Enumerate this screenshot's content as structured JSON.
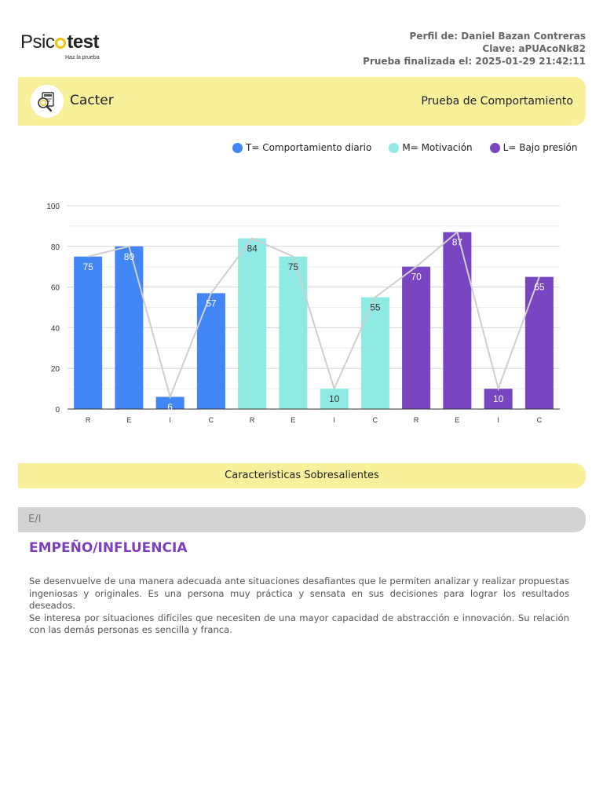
{
  "brand": {
    "name_part1": "Psic",
    "name_part2": "test",
    "tagline": "Haz la prueba"
  },
  "meta": {
    "profile": "Perfil de: Daniel Bazan Contreras",
    "key": "Clave: aPUAcoNk82",
    "finished": "Prueba finalizada el: 2025-01-29 21:42:11"
  },
  "header": {
    "test_name": "Cacter",
    "test_type": "Prueba de Comportamiento"
  },
  "legend": [
    {
      "label": "T= Comportamiento diario",
      "color": "#4285f4"
    },
    {
      "label": "M= Motivación",
      "color": "#8eeae2"
    },
    {
      "label": "L= Bajo presión",
      "color": "#7846c0"
    }
  ],
  "chart_data": {
    "type": "bar",
    "categories": [
      "R",
      "E",
      "I",
      "C",
      "R",
      "E",
      "I",
      "C",
      "R",
      "E",
      "I",
      "C"
    ],
    "values": [
      75,
      80,
      6,
      57,
      84,
      75,
      10,
      55,
      70,
      87,
      10,
      65
    ],
    "series_colors": [
      "#4285f4",
      "#4285f4",
      "#4285f4",
      "#4285f4",
      "#8eeae2",
      "#8eeae2",
      "#8eeae2",
      "#8eeae2",
      "#7846c0",
      "#7846c0",
      "#7846c0",
      "#7846c0"
    ],
    "overlay_line": true,
    "ylim": [
      0,
      100
    ],
    "yticks": [
      0,
      20,
      40,
      60,
      80,
      100
    ],
    "grid": true,
    "title": "",
    "xlabel": "",
    "ylabel": ""
  },
  "section": {
    "title": "Caracteristicas Sobresalientes"
  },
  "trait": {
    "code": "E/I",
    "title": "EMPEÑO/INFLUENCIA",
    "paragraph1": "Se desenvuelve de una manera adecuada ante situaciones desafiantes que le permiten analizar y realizar propuestas ingeniosas y originales. Es una persona muy práctica y sensata en sus decisiones para lograr los resultados deseados.",
    "paragraph2": "Se interesa por situaciones difíciles que necesiten de una mayor capacidad de abstracción e innovación. Su relación con las demás personas es sencilla y franca."
  }
}
